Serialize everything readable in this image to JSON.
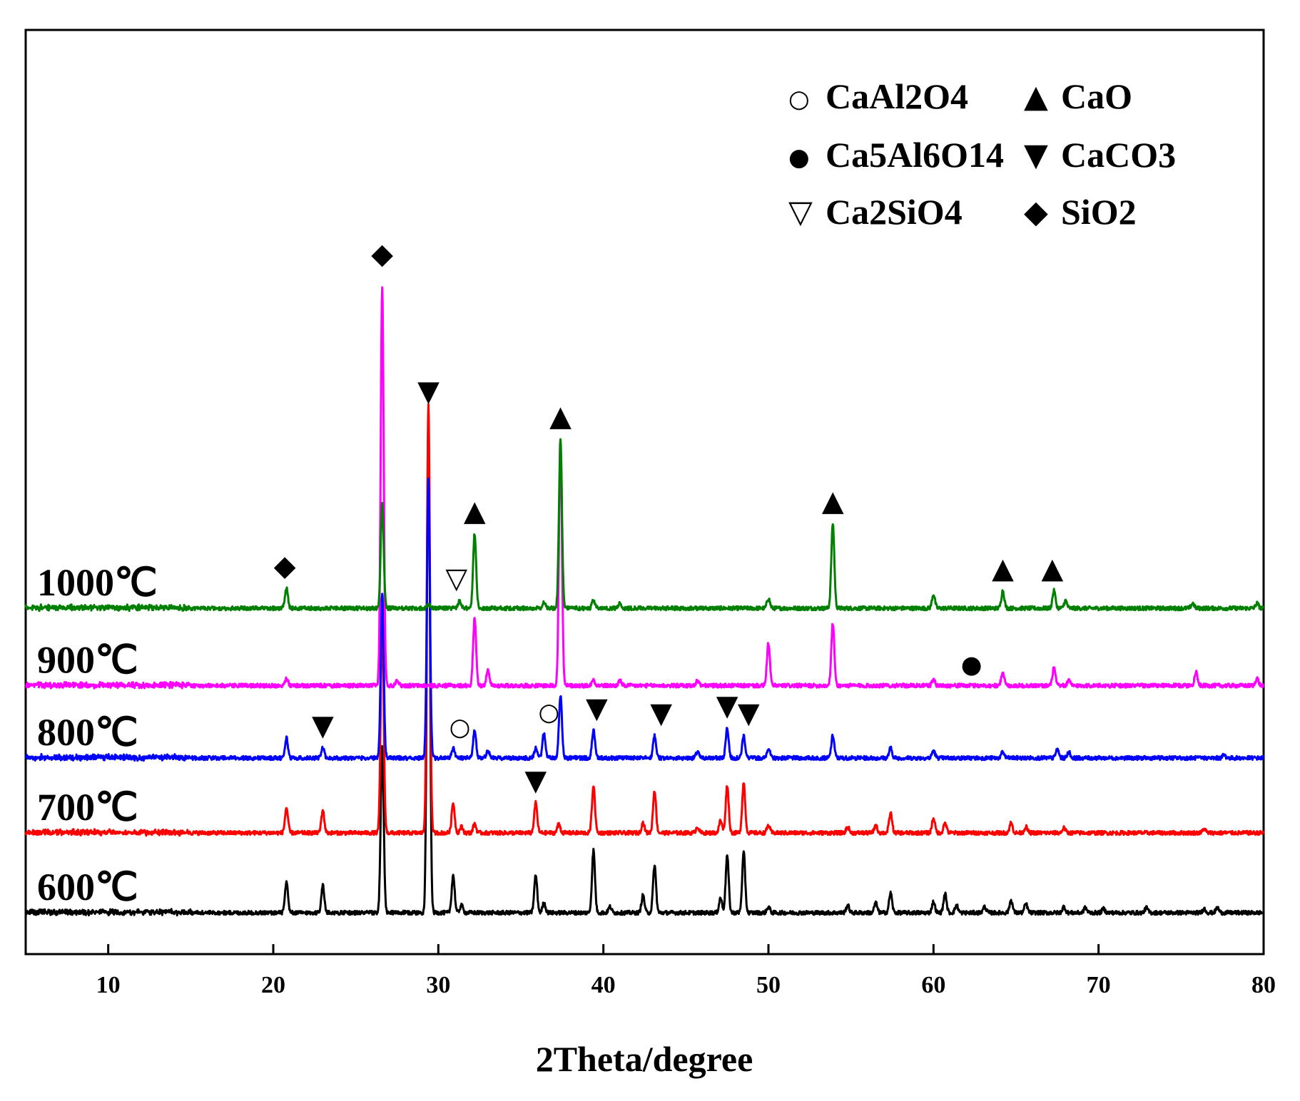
{
  "chart_data": {
    "type": "line",
    "title": "",
    "xlabel": "2Theta/degree",
    "ylabel": "",
    "xlim": [
      5,
      80
    ],
    "xticks": [
      10,
      20,
      30,
      40,
      50,
      60,
      70,
      80
    ],
    "xtick_labels": [
      "10",
      "20",
      "30",
      "40",
      "50",
      "60",
      "70",
      "80"
    ],
    "y_ticks_shown": false,
    "legend": {
      "placement": "top-right",
      "entries": [
        {
          "symbol": "○",
          "label": "CaAl2O4",
          "phase": "CaAl2O4"
        },
        {
          "symbol": "▲",
          "label": "CaO",
          "phase": "CaO"
        },
        {
          "symbol": "●",
          "label": "Ca5Al6O14",
          "phase": "Ca5Al6O14"
        },
        {
          "symbol": "▼",
          "label": "CaCO3",
          "phase": "CaCO3"
        },
        {
          "symbol": "▽",
          "label": "Ca2SiO4",
          "phase": "Ca2SiO4"
        },
        {
          "symbol": "◆",
          "label": "SiO2",
          "phase": "SiO2"
        }
      ]
    },
    "series": [
      {
        "name": "600℃",
        "color": "#000000",
        "offset": 0,
        "background": 0,
        "peaks": [
          [
            20.8,
            60
          ],
          [
            23.0,
            55
          ],
          [
            26.6,
            330
          ],
          [
            29.4,
            1000
          ],
          [
            30.9,
            75
          ],
          [
            31.4,
            15
          ],
          [
            35.9,
            75
          ],
          [
            36.4,
            20
          ],
          [
            39.4,
            125
          ],
          [
            40.4,
            12
          ],
          [
            42.4,
            35
          ],
          [
            43.1,
            95
          ],
          [
            47.1,
            30
          ],
          [
            47.5,
            115
          ],
          [
            48.5,
            120
          ],
          [
            50.0,
            12
          ],
          [
            54.8,
            15
          ],
          [
            56.5,
            20
          ],
          [
            57.4,
            40
          ],
          [
            60.0,
            22
          ],
          [
            60.7,
            38
          ],
          [
            61.4,
            15
          ],
          [
            63.1,
            12
          ],
          [
            64.7,
            25
          ],
          [
            65.6,
            18
          ],
          [
            67.9,
            12
          ],
          [
            69.2,
            10
          ],
          [
            70.3,
            8
          ],
          [
            72.9,
            10
          ],
          [
            76.4,
            8
          ],
          [
            77.2,
            10
          ]
        ]
      },
      {
        "name": "700℃",
        "color": "#ff0000",
        "offset": 160,
        "background": 0,
        "peaks": [
          [
            20.8,
            50
          ],
          [
            23.0,
            45
          ],
          [
            26.6,
            430
          ],
          [
            29.4,
            860
          ],
          [
            30.9,
            60
          ],
          [
            31.4,
            12
          ],
          [
            32.2,
            18
          ],
          [
            35.9,
            60
          ],
          [
            37.3,
            18
          ],
          [
            39.4,
            95
          ],
          [
            42.4,
            20
          ],
          [
            43.1,
            85
          ],
          [
            45.7,
            12
          ],
          [
            47.1,
            25
          ],
          [
            47.5,
            95
          ],
          [
            48.5,
            100
          ],
          [
            50.0,
            15
          ],
          [
            54.8,
            12
          ],
          [
            56.5,
            15
          ],
          [
            57.4,
            40
          ],
          [
            60.0,
            30
          ],
          [
            60.7,
            20
          ],
          [
            64.7,
            20
          ],
          [
            65.6,
            12
          ],
          [
            67.9,
            10
          ],
          [
            76.4,
            8
          ]
        ]
      },
      {
        "name": "800℃",
        "color": "#0000ff",
        "offset": 310,
        "background": 0,
        "peaks": [
          [
            20.8,
            40
          ],
          [
            23.0,
            20
          ],
          [
            26.6,
            330
          ],
          [
            29.4,
            560
          ],
          [
            30.9,
            20
          ],
          [
            32.2,
            55
          ],
          [
            33.0,
            15
          ],
          [
            35.9,
            20
          ],
          [
            36.4,
            50
          ],
          [
            37.4,
            125
          ],
          [
            39.4,
            55
          ],
          [
            43.1,
            45
          ],
          [
            45.7,
            12
          ],
          [
            47.5,
            60
          ],
          [
            48.5,
            45
          ],
          [
            50.0,
            20
          ],
          [
            53.9,
            45
          ],
          [
            57.4,
            20
          ],
          [
            60.0,
            15
          ],
          [
            64.2,
            12
          ],
          [
            67.5,
            18
          ],
          [
            68.2,
            12
          ],
          [
            77.6,
            6
          ]
        ]
      },
      {
        "name": "900℃",
        "color": "#ff00ff",
        "offset": 455,
        "background": 0,
        "peaks": [
          [
            20.8,
            15
          ],
          [
            26.6,
            800
          ],
          [
            27.5,
            12
          ],
          [
            32.2,
            135
          ],
          [
            33.0,
            30
          ],
          [
            37.4,
            490
          ],
          [
            39.4,
            12
          ],
          [
            41.0,
            10
          ],
          [
            45.7,
            10
          ],
          [
            50.0,
            85
          ],
          [
            53.9,
            125
          ],
          [
            60.0,
            12
          ],
          [
            64.2,
            28
          ],
          [
            67.3,
            35
          ],
          [
            68.2,
            10
          ],
          [
            75.9,
            28
          ],
          [
            79.6,
            15
          ]
        ]
      },
      {
        "name": "1000℃",
        "color": "#008000",
        "offset": 610,
        "background": 0,
        "peaks": [
          [
            20.8,
            40
          ],
          [
            26.6,
            210
          ],
          [
            29.4,
            8
          ],
          [
            31.3,
            15
          ],
          [
            32.2,
            150
          ],
          [
            36.4,
            12
          ],
          [
            37.4,
            340
          ],
          [
            39.4,
            15
          ],
          [
            41.0,
            10
          ],
          [
            50.0,
            20
          ],
          [
            53.9,
            170
          ],
          [
            60.0,
            28
          ],
          [
            64.2,
            35
          ],
          [
            67.3,
            35
          ],
          [
            68.0,
            15
          ],
          [
            75.7,
            10
          ],
          [
            79.6,
            10
          ]
        ]
      }
    ],
    "annotations": [
      {
        "symbol": "◆",
        "phase": "SiO2",
        "x": 20.7,
        "series": "1000℃",
        "above": 40
      },
      {
        "symbol": "◆",
        "phase": "SiO2",
        "x": 26.6,
        "series": "900℃",
        "above": 820
      },
      {
        "symbol": "▼",
        "phase": "CaCO3",
        "x": 29.4,
        "series": "600℃",
        "above": 1000
      },
      {
        "symbol": "▽",
        "phase": "Ca2SiO4",
        "x": 31.1,
        "series": "1000℃",
        "above": 15
      },
      {
        "symbol": "▲",
        "phase": "CaO",
        "x": 32.2,
        "series": "1000℃",
        "above": 150
      },
      {
        "symbol": "▲",
        "phase": "CaO",
        "x": 37.4,
        "series": "1000℃",
        "above": 340
      },
      {
        "symbol": "▲",
        "phase": "CaO",
        "x": 53.9,
        "series": "1000℃",
        "above": 170
      },
      {
        "symbol": "▲",
        "phase": "CaO",
        "x": 64.2,
        "series": "1000℃",
        "above": 35
      },
      {
        "symbol": "▲",
        "phase": "CaO",
        "x": 67.2,
        "series": "1000℃",
        "above": 35
      },
      {
        "symbol": "●",
        "phase": "Ca5Al6O14",
        "x": 62.3,
        "series": "900℃",
        "above": 0
      },
      {
        "symbol": "▼",
        "phase": "CaCO3",
        "x": 23.0,
        "series": "800℃",
        "above": 20
      },
      {
        "symbol": "○",
        "phase": "CaAl2O4",
        "x": 31.3,
        "series": "800℃",
        "above": 20
      },
      {
        "symbol": "○",
        "phase": "CaAl2O4",
        "x": 36.7,
        "series": "800℃",
        "above": 50
      },
      {
        "symbol": "▼",
        "phase": "CaCO3",
        "x": 39.6,
        "series": "800℃",
        "above": 55
      },
      {
        "symbol": "▼",
        "phase": "CaCO3",
        "x": 43.5,
        "series": "800℃",
        "above": 45
      },
      {
        "symbol": "▼",
        "phase": "CaCO3",
        "x": 47.5,
        "series": "800℃",
        "above": 60
      },
      {
        "symbol": "▼",
        "phase": "CaCO3",
        "x": 48.8,
        "series": "800℃",
        "above": 45
      },
      {
        "symbol": "▼",
        "phase": "CaCO3",
        "x": 35.9,
        "series": "700℃",
        "above": 60
      }
    ]
  }
}
